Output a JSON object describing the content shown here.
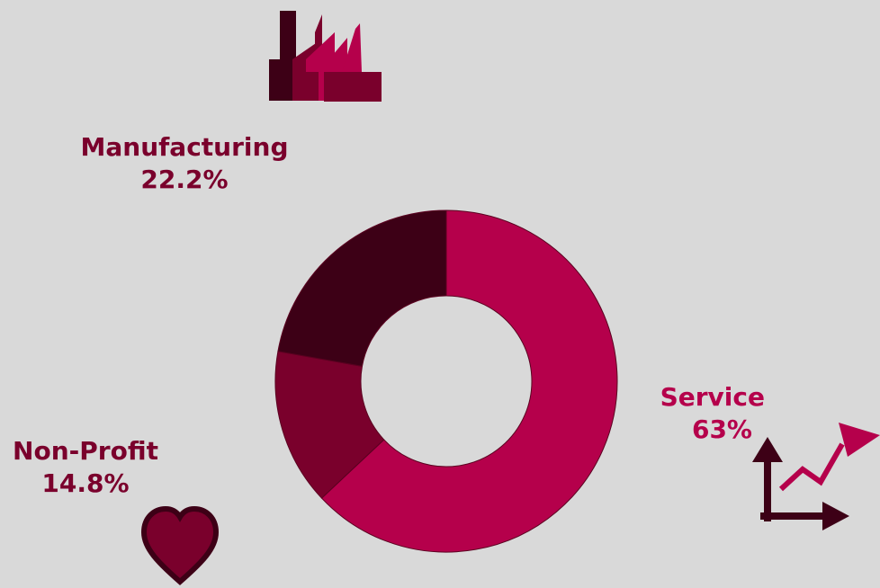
{
  "chart_data": {
    "type": "pie",
    "donut": true,
    "start_angle_deg": 0,
    "direction": "clockwise",
    "slices": [
      {
        "label": "Service",
        "value": 63,
        "display": "63%",
        "color": "#b5004b"
      },
      {
        "label": "Non-Profit",
        "value": 14.8,
        "display": "14.8%",
        "color": "#7a002c"
      },
      {
        "label": "Manufacturing",
        "value": 22.2,
        "display": "22.2%",
        "color": "#3d0016"
      }
    ],
    "label_colors": {
      "Service": "#b5004b",
      "Non-Profit": "#7a002c",
      "Manufacturing": "#7a002c"
    }
  },
  "icons": {
    "manufacturing": "factory-icon",
    "service": "growth-chart-icon",
    "nonprofit": "heart-icon"
  },
  "colors": {
    "background": "#d9d9d9",
    "dark": "#3d0016",
    "mid": "#7a002c",
    "bright": "#b5004b"
  }
}
